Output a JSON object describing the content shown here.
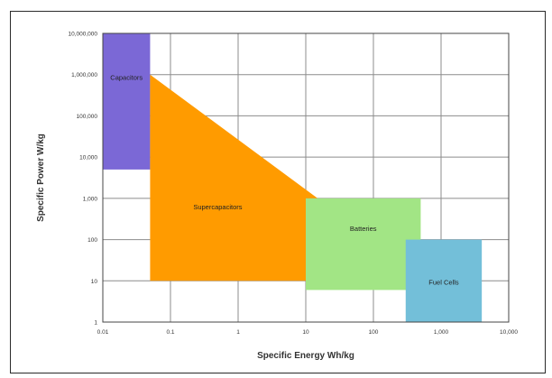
{
  "chart_data": {
    "type": "area",
    "title": "",
    "xlabel": "Specific Energy Wh/kg",
    "ylabel": "Specific Power W/kg",
    "x_scale": "log",
    "y_scale": "log",
    "xlim": [
      0.01,
      10000
    ],
    "ylim": [
      1,
      10000000
    ],
    "grid": true,
    "x_tick_values": [
      0.01,
      0.1,
      1,
      10,
      100,
      1000,
      10000
    ],
    "x_tick_labels": [
      "0.01",
      "0.1",
      "1",
      "10",
      "100",
      "1,000",
      "10,000"
    ],
    "y_tick_values": [
      1,
      10,
      100,
      1000,
      10000,
      100000,
      1000000,
      10000000
    ],
    "y_tick_labels": [
      "1",
      "10",
      "100",
      "1,000",
      "10,000",
      "100,000",
      "1,000,000",
      "10,000,000"
    ],
    "regions": [
      {
        "name": "Capacitors",
        "label": "Capacitors",
        "color": "#7b68d6",
        "shape": "rect",
        "x": [
          0.01,
          0.05
        ],
        "y": [
          5000,
          10000000
        ]
      },
      {
        "name": "Supercapacitors",
        "label": "Supercapacitors",
        "color": "#ff9b00",
        "shape": "polygon",
        "points": [
          [
            0.05,
            1000000
          ],
          [
            0.05,
            10
          ],
          [
            10,
            10
          ],
          [
            10,
            1000
          ],
          [
            15,
            1000
          ]
        ]
      },
      {
        "name": "Batteries",
        "label": "Batteries",
        "color": "#a2e585",
        "shape": "rect",
        "x": [
          10,
          500
        ],
        "y": [
          6,
          1000
        ]
      },
      {
        "name": "Fuel Cells",
        "label": "Fuel Cells",
        "color": "#73bfd9",
        "shape": "rect",
        "x": [
          300,
          4000
        ],
        "y": [
          1,
          100
        ]
      }
    ]
  }
}
